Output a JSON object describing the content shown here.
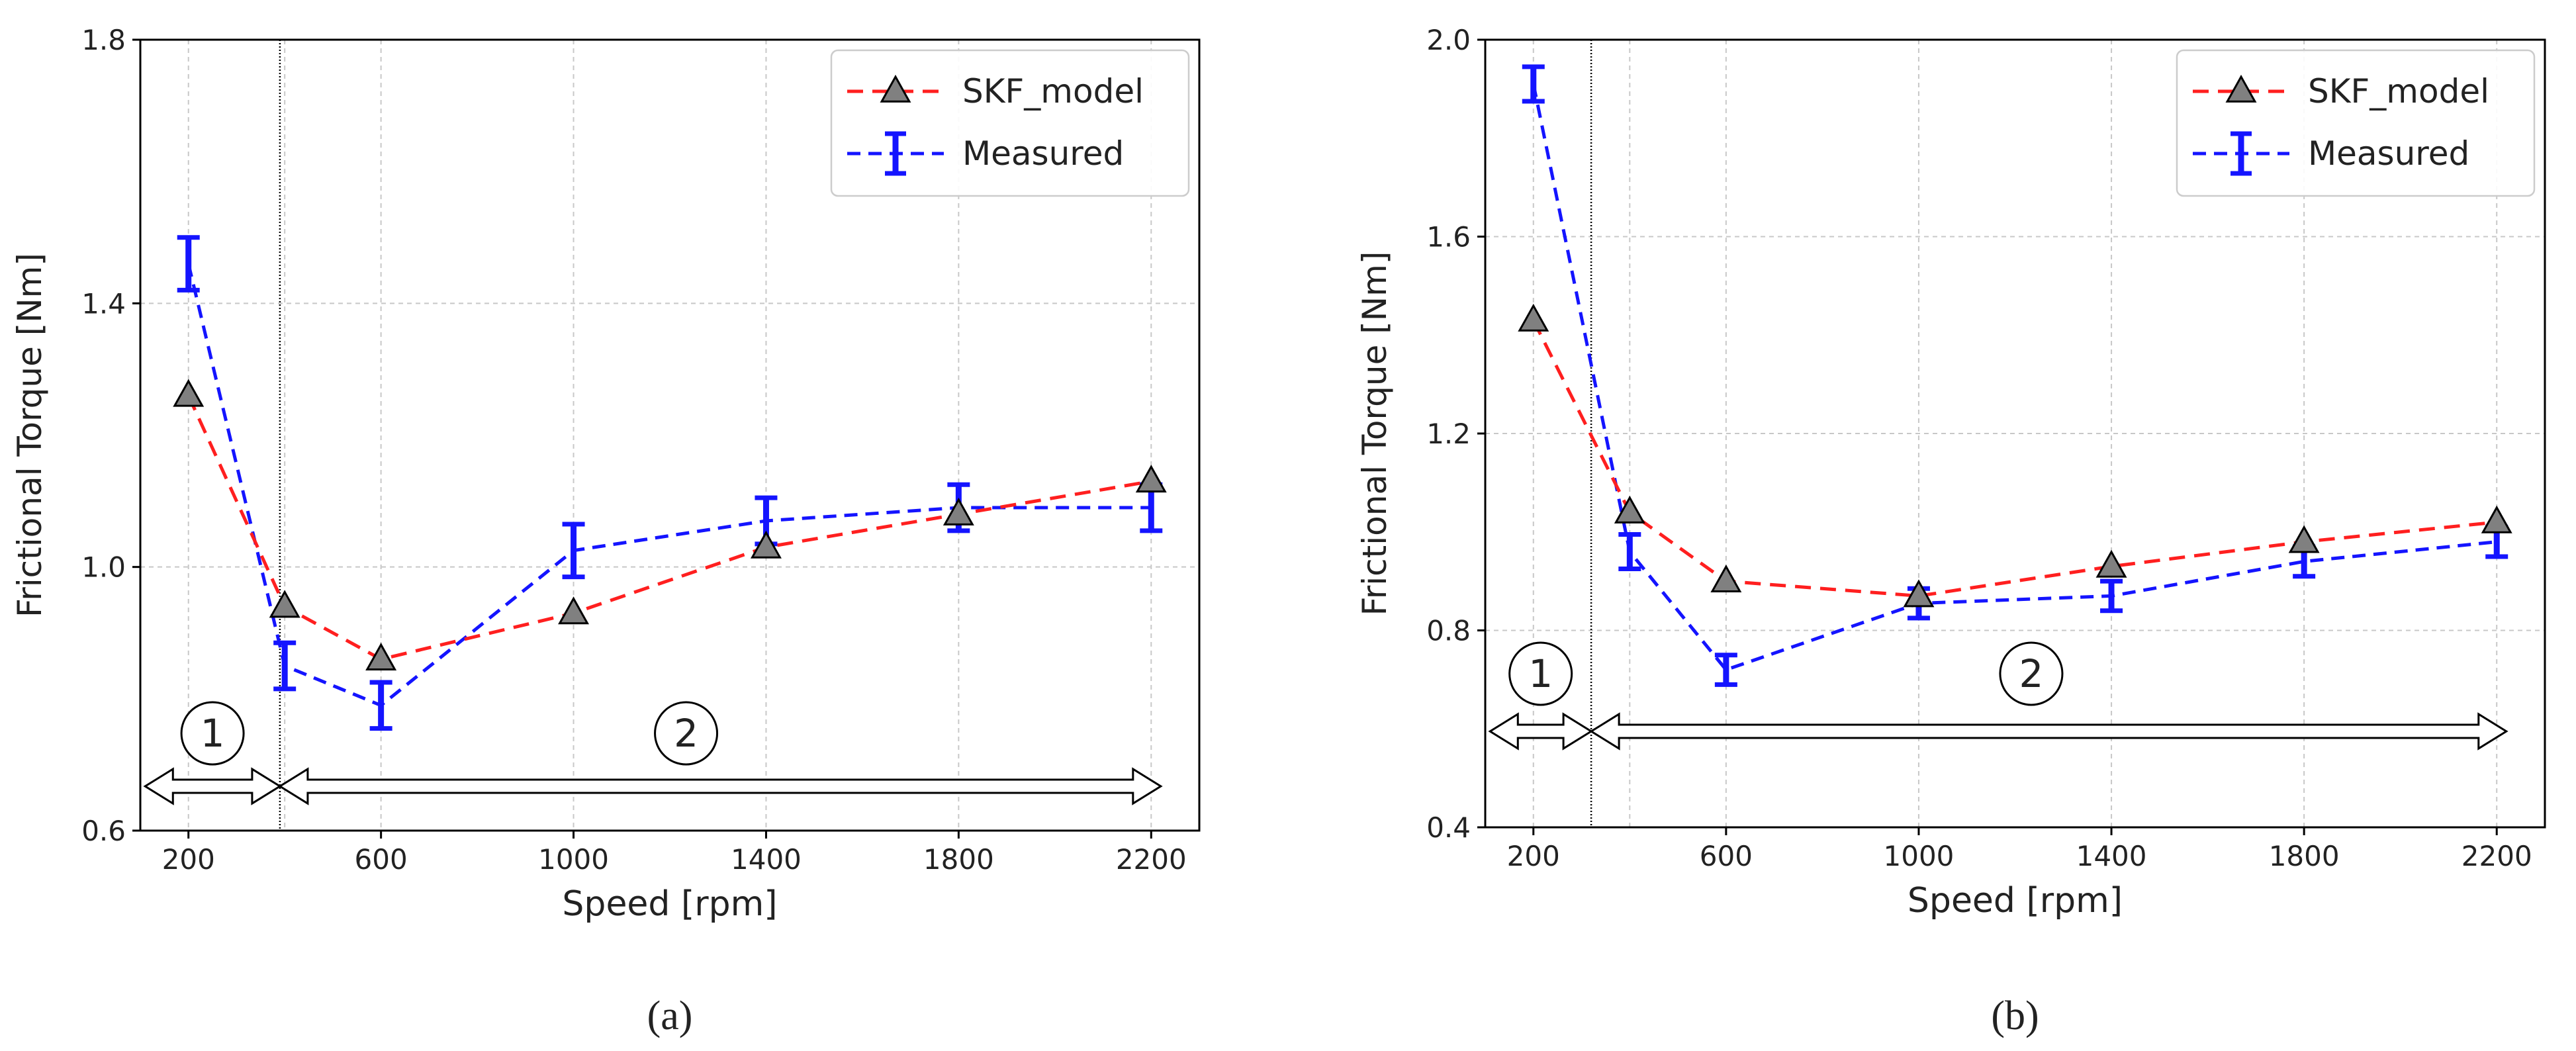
{
  "colors": {
    "skf": "#ff1f1f",
    "measured": "#1414ff",
    "marker_fill": "#808080",
    "grid": "#c8c8c8",
    "axis": "#000000"
  },
  "chart_data": [
    {
      "id": "a",
      "type": "line",
      "caption": "(a)",
      "xlabel": "Speed [rpm]",
      "ylabel": "Frictional Torque [Nm]",
      "xlim": [
        100,
        2300
      ],
      "ylim": [
        0.6,
        1.8
      ],
      "xticks": [
        200,
        600,
        1000,
        1400,
        1800,
        2200
      ],
      "xtick_labels": [
        "200",
        "600",
        "1000",
        "1400",
        "1800",
        "2200"
      ],
      "yticks": [
        0.6,
        1.0,
        1.4,
        1.8
      ],
      "ytick_labels": [
        "0.6",
        "1.0",
        "1.4",
        "1.8"
      ],
      "extra_xgrid": [
        400
      ],
      "grid": true,
      "legend_position": "top-right",
      "regime_boundary": 390,
      "regions": [
        {
          "label": "1",
          "from": 110,
          "to": 390
        },
        {
          "label": "2",
          "from": 390,
          "to": 2220
        }
      ],
      "series": [
        {
          "name": "SKF_model",
          "style": "dashed-triangle",
          "x": [
            200,
            400,
            600,
            1000,
            1400,
            1800,
            2200
          ],
          "y": [
            1.26,
            0.94,
            0.86,
            0.93,
            1.03,
            1.08,
            1.13
          ]
        },
        {
          "name": "Measured",
          "style": "dashed-errorbar",
          "x": [
            200,
            400,
            600,
            1000,
            1400,
            1800,
            2200
          ],
          "y": [
            1.46,
            0.85,
            0.79,
            1.025,
            1.07,
            1.09,
            1.09
          ],
          "yerr": [
            0.04,
            0.035,
            0.035,
            0.04,
            0.035,
            0.035,
            0.035
          ]
        }
      ]
    },
    {
      "id": "b",
      "type": "line",
      "caption": "(b)",
      "xlabel": "Speed [rpm]",
      "ylabel": "Frictional Torque [Nm]",
      "xlim": [
        100,
        2300
      ],
      "ylim": [
        0.4,
        2.0
      ],
      "xticks": [
        200,
        600,
        1000,
        1400,
        1800,
        2200
      ],
      "xtick_labels": [
        "200",
        "600",
        "1000",
        "1400",
        "1800",
        "2200"
      ],
      "yticks": [
        0.4,
        0.8,
        1.2,
        1.6,
        2.0
      ],
      "ytick_labels": [
        "0.4",
        "0.8",
        "1.2",
        "1.6",
        "2.0"
      ],
      "extra_xgrid": [
        400
      ],
      "grid": true,
      "legend_position": "top-right",
      "regime_boundary": 320,
      "regions": [
        {
          "label": "1",
          "from": 110,
          "to": 320
        },
        {
          "label": "2",
          "from": 320,
          "to": 2220
        }
      ],
      "series": [
        {
          "name": "SKF_model",
          "style": "dashed-triangle",
          "x": [
            200,
            400,
            600,
            1000,
            1400,
            1800,
            2200
          ],
          "y": [
            1.43,
            1.04,
            0.9,
            0.87,
            0.93,
            0.98,
            1.02
          ]
        },
        {
          "name": "Measured",
          "style": "dashed-errorbar",
          "x": [
            200,
            400,
            600,
            1000,
            1400,
            1800,
            2200
          ],
          "y": [
            1.91,
            0.96,
            0.72,
            0.855,
            0.87,
            0.94,
            0.98
          ],
          "yerr": [
            0.035,
            0.035,
            0.03,
            0.03,
            0.03,
            0.03,
            0.03
          ]
        }
      ]
    }
  ]
}
